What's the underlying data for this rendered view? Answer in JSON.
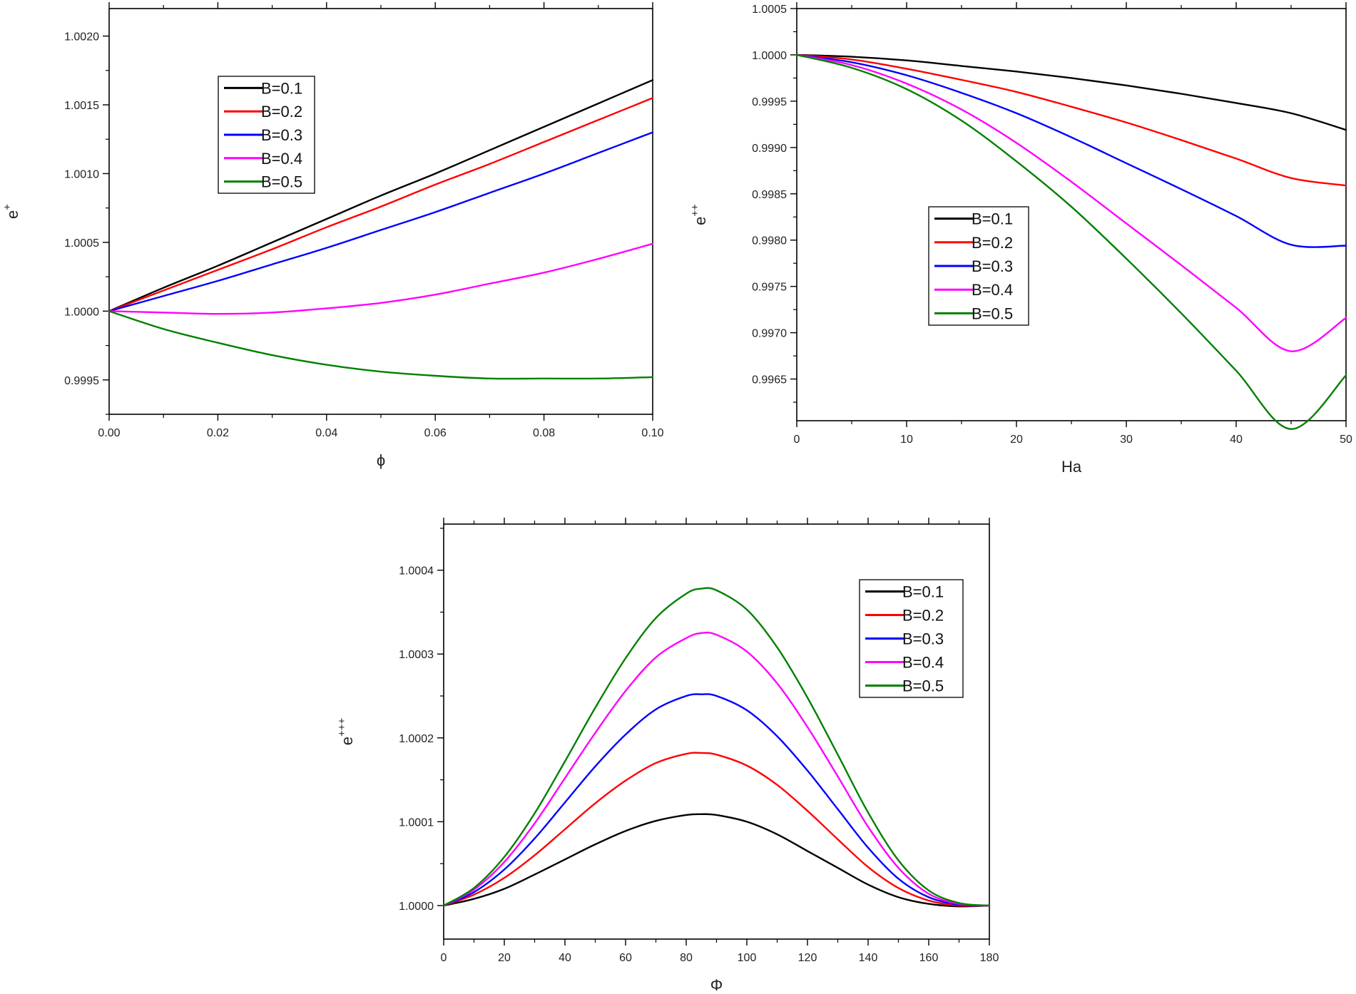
{
  "chart_data": [
    {
      "type": "line",
      "xlabel": "ϕ",
      "ylabel": "e",
      "ylabel_sup": "+",
      "xlim": [
        0,
        0.1
      ],
      "ylim": [
        0.99925,
        1.0022
      ],
      "xticks": [
        "0.00",
        "0.02",
        "0.04",
        "0.06",
        "0.08",
        "0.10"
      ],
      "yticks": [
        "0.9995",
        "1.0000",
        "1.0005",
        "1.0010",
        "1.0015",
        "1.0020"
      ],
      "legend_position": "upper-left",
      "x": [
        0,
        0.01,
        0.02,
        0.03,
        0.04,
        0.05,
        0.06,
        0.07,
        0.08,
        0.09,
        0.1
      ],
      "series": [
        {
          "name": "B=0.1",
          "color": "#000000",
          "values": [
            1.0,
            1.00017,
            1.00033,
            1.0005,
            1.00067,
            1.00084,
            1.001,
            1.00117,
            1.00134,
            1.00151,
            1.00168
          ]
        },
        {
          "name": "B=0.2",
          "color": "#ff0000",
          "values": [
            1.0,
            1.00015,
            1.0003,
            1.00045,
            1.00061,
            1.00076,
            1.00092,
            1.00107,
            1.00123,
            1.00139,
            1.00155
          ]
        },
        {
          "name": "B=0.3",
          "color": "#0000ff",
          "values": [
            1.0,
            1.00011,
            1.00022,
            1.00034,
            1.00046,
            1.00059,
            1.00072,
            1.00086,
            1.001,
            1.00115,
            1.0013
          ]
        },
        {
          "name": "B=0.4",
          "color": "#ff00ff",
          "values": [
            1.0,
            0.99999,
            0.99998,
            0.99999,
            1.00002,
            1.00006,
            1.00012,
            1.0002,
            1.00028,
            1.00038,
            1.00049
          ]
        },
        {
          "name": "B=0.5",
          "color": "#008000",
          "values": [
            1.0,
            0.99987,
            0.99977,
            0.99968,
            0.99961,
            0.99956,
            0.99953,
            0.99951,
            0.99951,
            0.99951,
            0.99952
          ]
        }
      ]
    },
    {
      "type": "line",
      "xlabel": "Ha",
      "ylabel": "e",
      "ylabel_sup": "++",
      "xlim": [
        0,
        50
      ],
      "ylim": [
        0.99605,
        1.0005
      ],
      "xticks": [
        "0",
        "10",
        "20",
        "30",
        "40",
        "50"
      ],
      "yticks": [
        "0.9965",
        "0.9970",
        "0.9975",
        "0.9980",
        "0.9985",
        "0.9990",
        "0.9995",
        "1.0000",
        "1.0005"
      ],
      "legend_position": "center-left",
      "x": [
        0,
        5,
        10,
        15,
        20,
        25,
        30,
        35,
        40,
        45,
        50
      ],
      "series": [
        {
          "name": "B=0.1",
          "color": "#000000",
          "values": [
            1.0,
            0.99998,
            0.99994,
            0.99988,
            0.99982,
            0.99975,
            0.99967,
            0.99958,
            0.99948,
            0.99937,
            0.99919
          ]
        },
        {
          "name": "B=0.2",
          "color": "#ff0000",
          "values": [
            1.0,
            0.99995,
            0.99985,
            0.99973,
            0.9996,
            0.99944,
            0.99927,
            0.99908,
            0.99888,
            0.99867,
            0.99859
          ]
        },
        {
          "name": "B=0.3",
          "color": "#0000ff",
          "values": [
            1.0,
            0.99992,
            0.99978,
            0.99959,
            0.99937,
            0.99911,
            0.99883,
            0.99855,
            0.99826,
            0.99795,
            0.99794
          ]
        },
        {
          "name": "B=0.4",
          "color": "#ff00ff",
          "values": [
            1.0,
            0.99989,
            0.99969,
            0.99941,
            0.99905,
            0.99863,
            0.99818,
            0.99773,
            0.99727,
            0.9968,
            0.99716
          ]
        },
        {
          "name": "B=0.5",
          "color": "#008000",
          "values": [
            1.0,
            0.99986,
            0.99963,
            0.99929,
            0.99885,
            0.99836,
            0.9978,
            0.99721,
            0.99659,
            0.99596,
            0.99654
          ]
        }
      ]
    },
    {
      "type": "line",
      "xlabel": "Φ",
      "ylabel": "e",
      "ylabel_sup": "+++",
      "xlim": [
        0,
        180
      ],
      "ylim": [
        0.99996,
        1.000455
      ],
      "xticks": [
        "0",
        "20",
        "40",
        "60",
        "80",
        "100",
        "120",
        "140",
        "160",
        "180"
      ],
      "yticks": [
        "1.0000",
        "1.0001",
        "1.0002",
        "1.0003",
        "1.0004"
      ],
      "legend_position": "upper-right",
      "x": [
        0,
        10,
        20,
        30,
        40,
        50,
        60,
        70,
        80,
        85,
        90,
        100,
        110,
        120,
        130,
        140,
        150,
        160,
        170,
        180
      ],
      "series": [
        {
          "name": "B=0.1",
          "color": "#000000",
          "values": [
            1.0,
            1.000008,
            1.00002,
            1.000037,
            1.000055,
            1.000073,
            1.000089,
            1.000101,
            1.000108,
            1.000109,
            1.000108,
            1.0001,
            1.000085,
            1.000065,
            1.000045,
            1.000025,
            1.00001,
            1.000002,
            0.999999,
            1.0
          ]
        },
        {
          "name": "B=0.2",
          "color": "#ff0000",
          "values": [
            1.0,
            1.000013,
            1.000033,
            1.00006,
            1.000091,
            1.000122,
            1.000149,
            1.00017,
            1.000181,
            1.000182,
            1.00018,
            1.000167,
            1.000144,
            1.000113,
            1.000079,
            1.000046,
            1.000021,
            1.000006,
            1.0,
            1.0
          ]
        },
        {
          "name": "B=0.3",
          "color": "#0000ff",
          "values": [
            1.0,
            1.000016,
            1.000043,
            1.00008,
            1.000123,
            1.000166,
            1.000204,
            1.000234,
            1.00025,
            1.000252,
            1.00025,
            1.000233,
            1.000202,
            1.000161,
            1.000115,
            1.000069,
            1.000032,
            1.00001,
            1.000001,
            1.0
          ]
        },
        {
          "name": "B=0.4",
          "color": "#ff00ff",
          "values": [
            1.0,
            1.000019,
            1.000052,
            1.000098,
            1.000152,
            1.000206,
            1.000256,
            1.000296,
            1.000319,
            1.000325,
            1.000323,
            1.000303,
            1.000265,
            1.000213,
            1.000154,
            1.000094,
            1.000045,
            1.000014,
            1.000002,
            1.0
          ]
        },
        {
          "name": "B=0.5",
          "color": "#008000",
          "values": [
            1.0,
            1.000021,
            1.000058,
            1.00011,
            1.000172,
            1.000236,
            1.000295,
            1.000343,
            1.000372,
            1.000378,
            1.000376,
            1.000353,
            1.000308,
            1.000248,
            1.00018,
            1.000111,
            1.000054,
            1.000018,
            1.000003,
            1.0
          ]
        }
      ]
    }
  ]
}
